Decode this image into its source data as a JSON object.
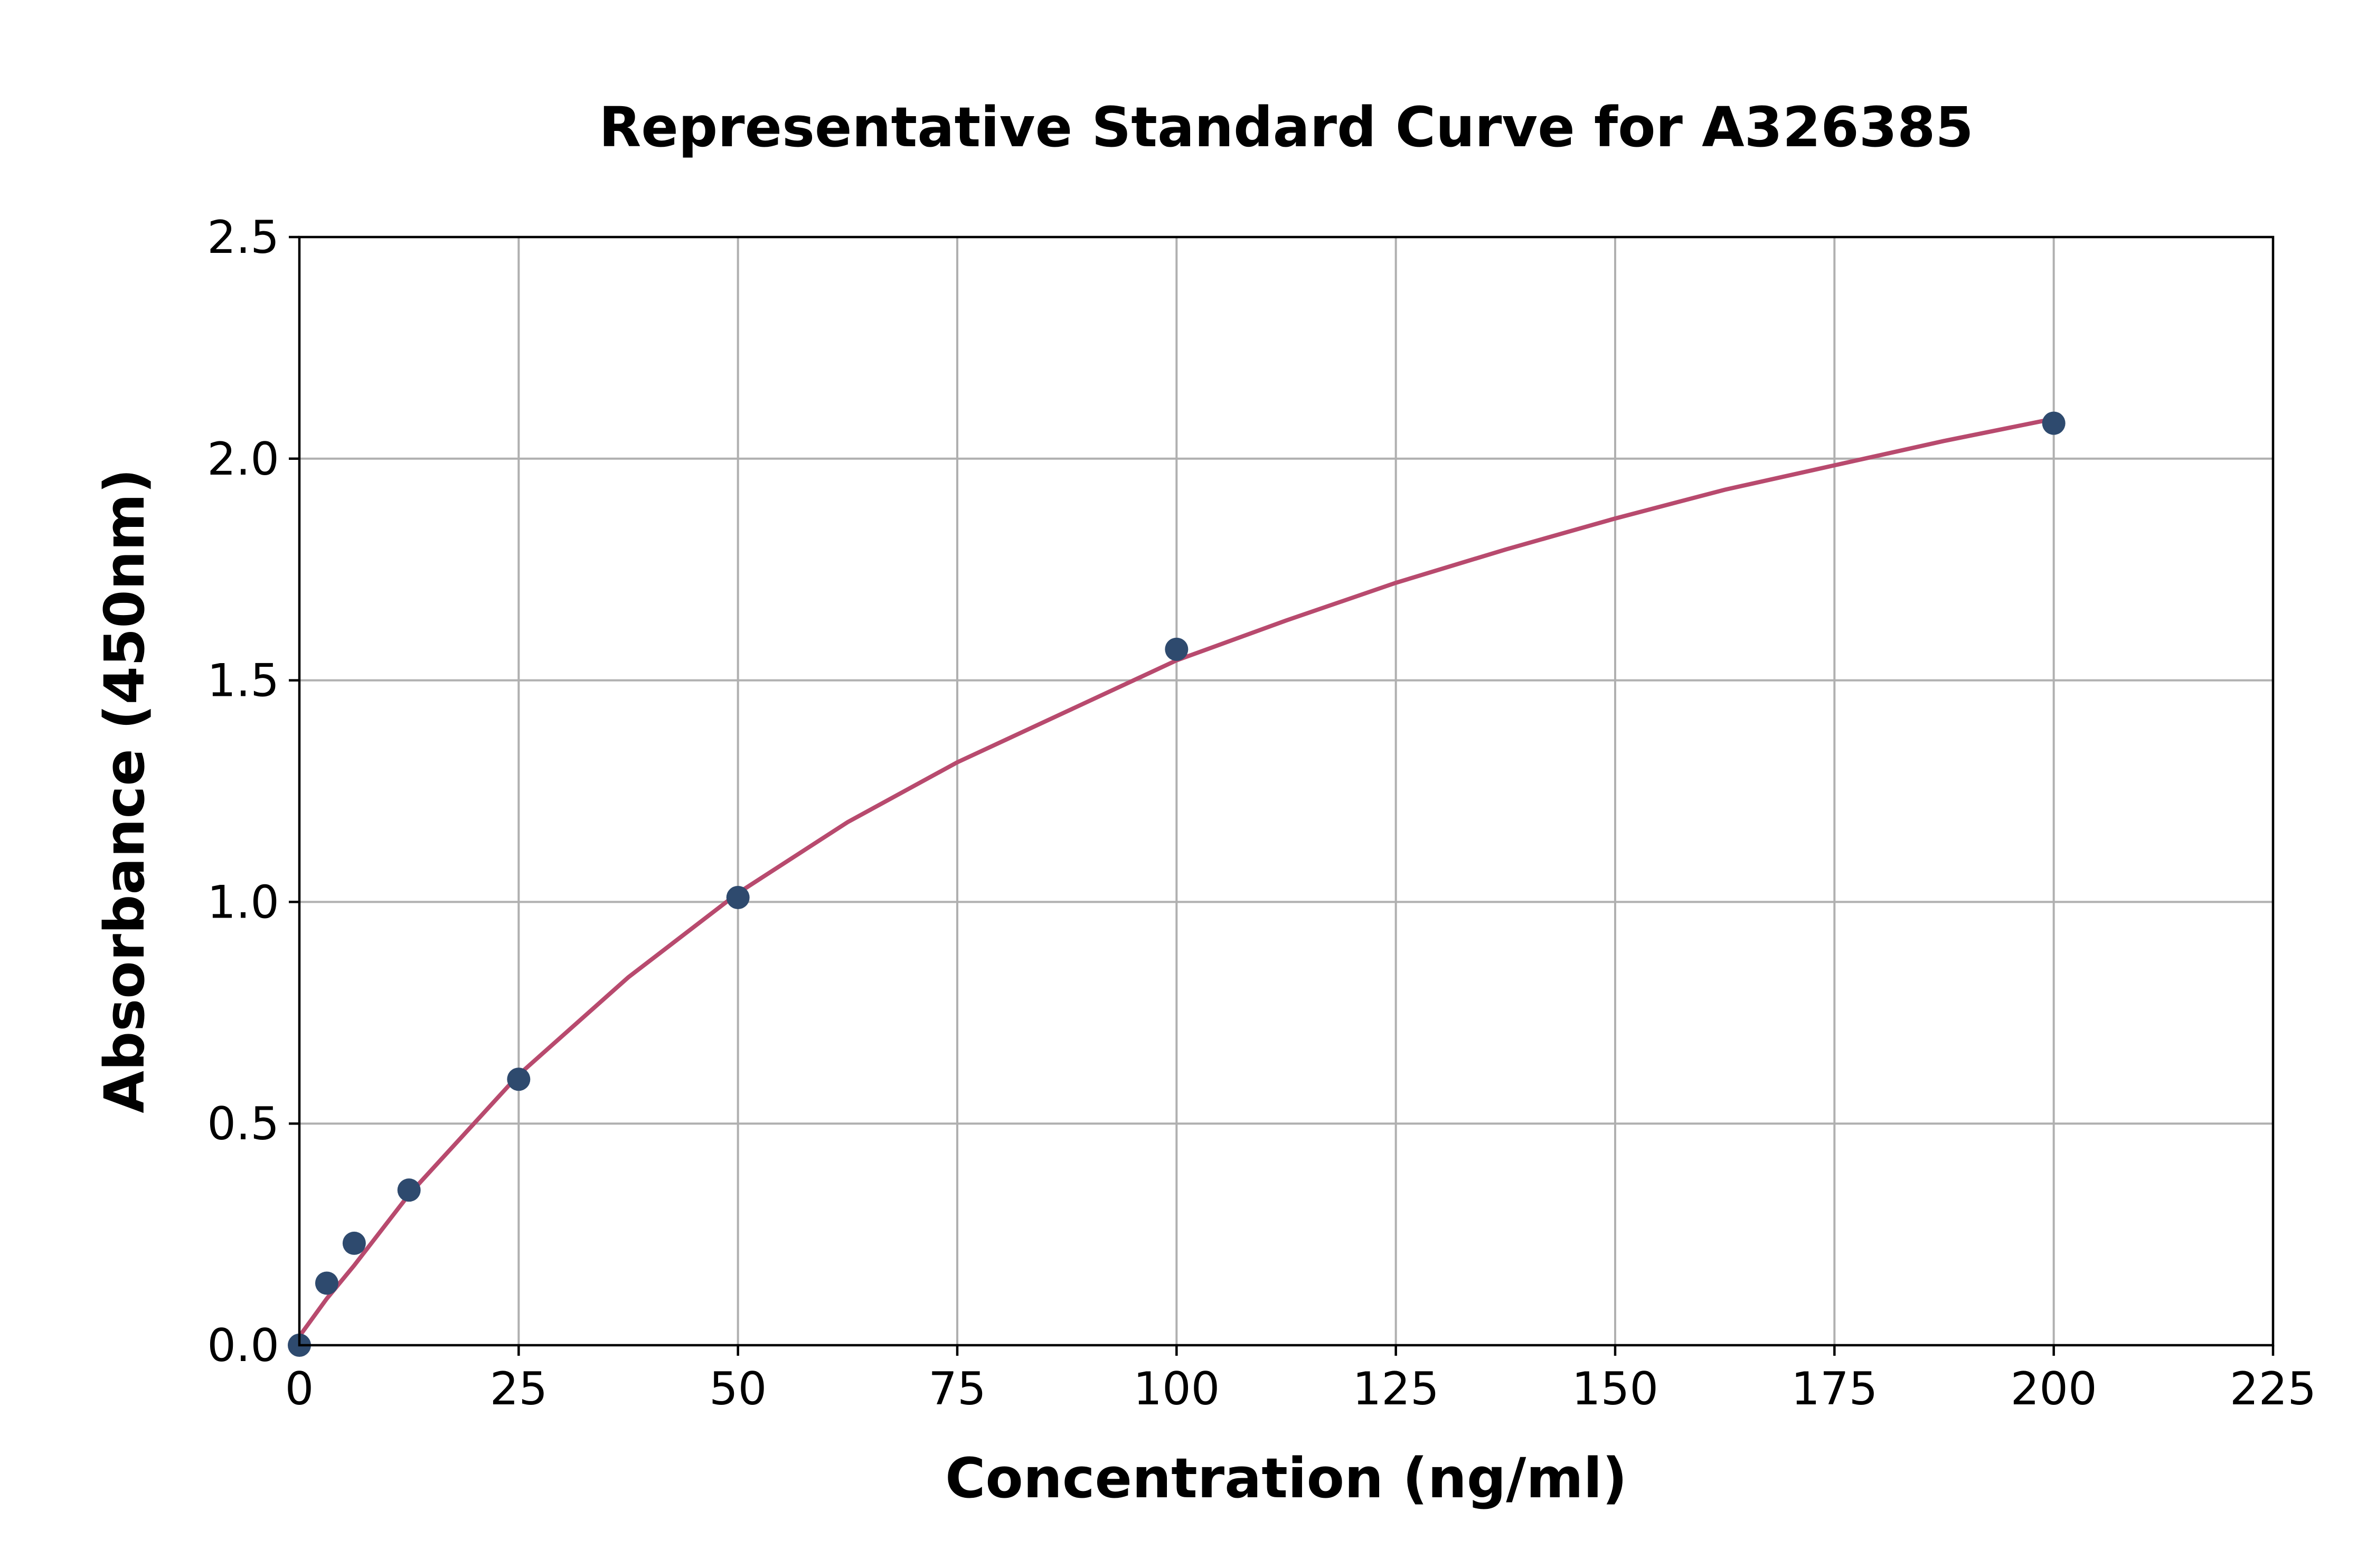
{
  "chart_data": {
    "type": "scatter",
    "title": "Representative Standard Curve for A326385",
    "xlabel": "Concentration (ng/ml)",
    "ylabel": "Absorbance (450nm)",
    "xlim": [
      0,
      225
    ],
    "ylim": [
      0,
      2.5
    ],
    "xticks": [
      "0",
      "25",
      "50",
      "75",
      "100",
      "125",
      "150",
      "175",
      "200",
      "225"
    ],
    "yticks": [
      "0.0",
      "0.5",
      "1.0",
      "1.5",
      "2.0",
      "2.5"
    ],
    "grid": true,
    "series": [
      {
        "kind": "points",
        "x": [
          0,
          3.125,
          6.25,
          12.5,
          25,
          50,
          100,
          200
        ],
        "y": [
          0.0,
          0.14,
          0.23,
          0.35,
          0.6,
          1.01,
          1.57,
          2.08
        ]
      },
      {
        "kind": "fit-curve",
        "x": [
          0,
          3.125,
          6.25,
          12.5,
          25,
          37.5,
          50,
          62.5,
          75,
          87.5,
          100,
          112.5,
          125,
          137.5,
          150,
          162.5,
          175,
          187.5,
          200
        ],
        "y": [
          0.02,
          0.105,
          0.18,
          0.34,
          0.61,
          0.83,
          1.02,
          1.18,
          1.315,
          1.43,
          1.545,
          1.635,
          1.72,
          1.795,
          1.865,
          1.93,
          1.985,
          2.04,
          2.09
        ]
      }
    ],
    "colors": {
      "points": "#2e4a6e",
      "curve": "#b84a6e"
    }
  }
}
